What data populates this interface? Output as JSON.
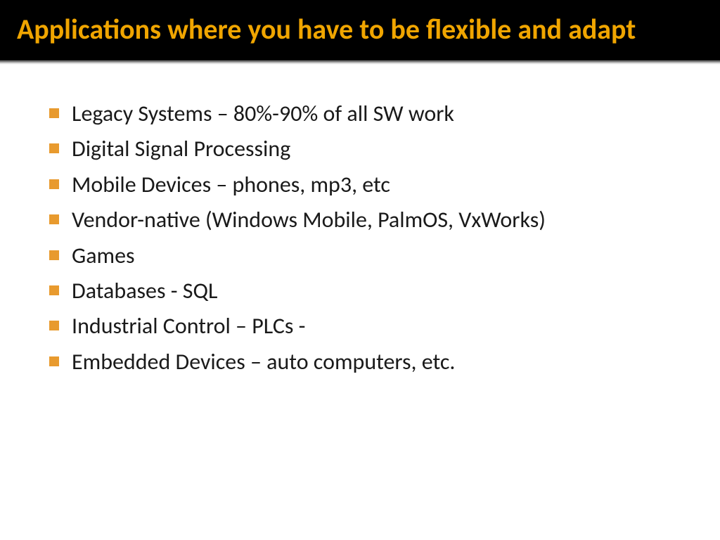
{
  "header": {
    "title": "Applications where you have to be flexible and adapt",
    "title_color": "#f0a500",
    "background_color": "#000000",
    "title_fontsize": 40
  },
  "content": {
    "bullet_color": "#e89a2e",
    "text_color": "#1a1a1a",
    "text_fontsize": 32,
    "items": [
      "Legacy Systems – 80%-90% of all SW work",
      "Digital Signal Processing",
      "Mobile Devices – phones, mp3, etc",
      "Vendor-native (Windows Mobile, PalmOS, VxWorks)",
      "Games",
      "Databases - SQL",
      "Industrial Control – PLCs -",
      "Embedded Devices – auto computers, etc."
    ]
  },
  "background_color": "#ffffff"
}
